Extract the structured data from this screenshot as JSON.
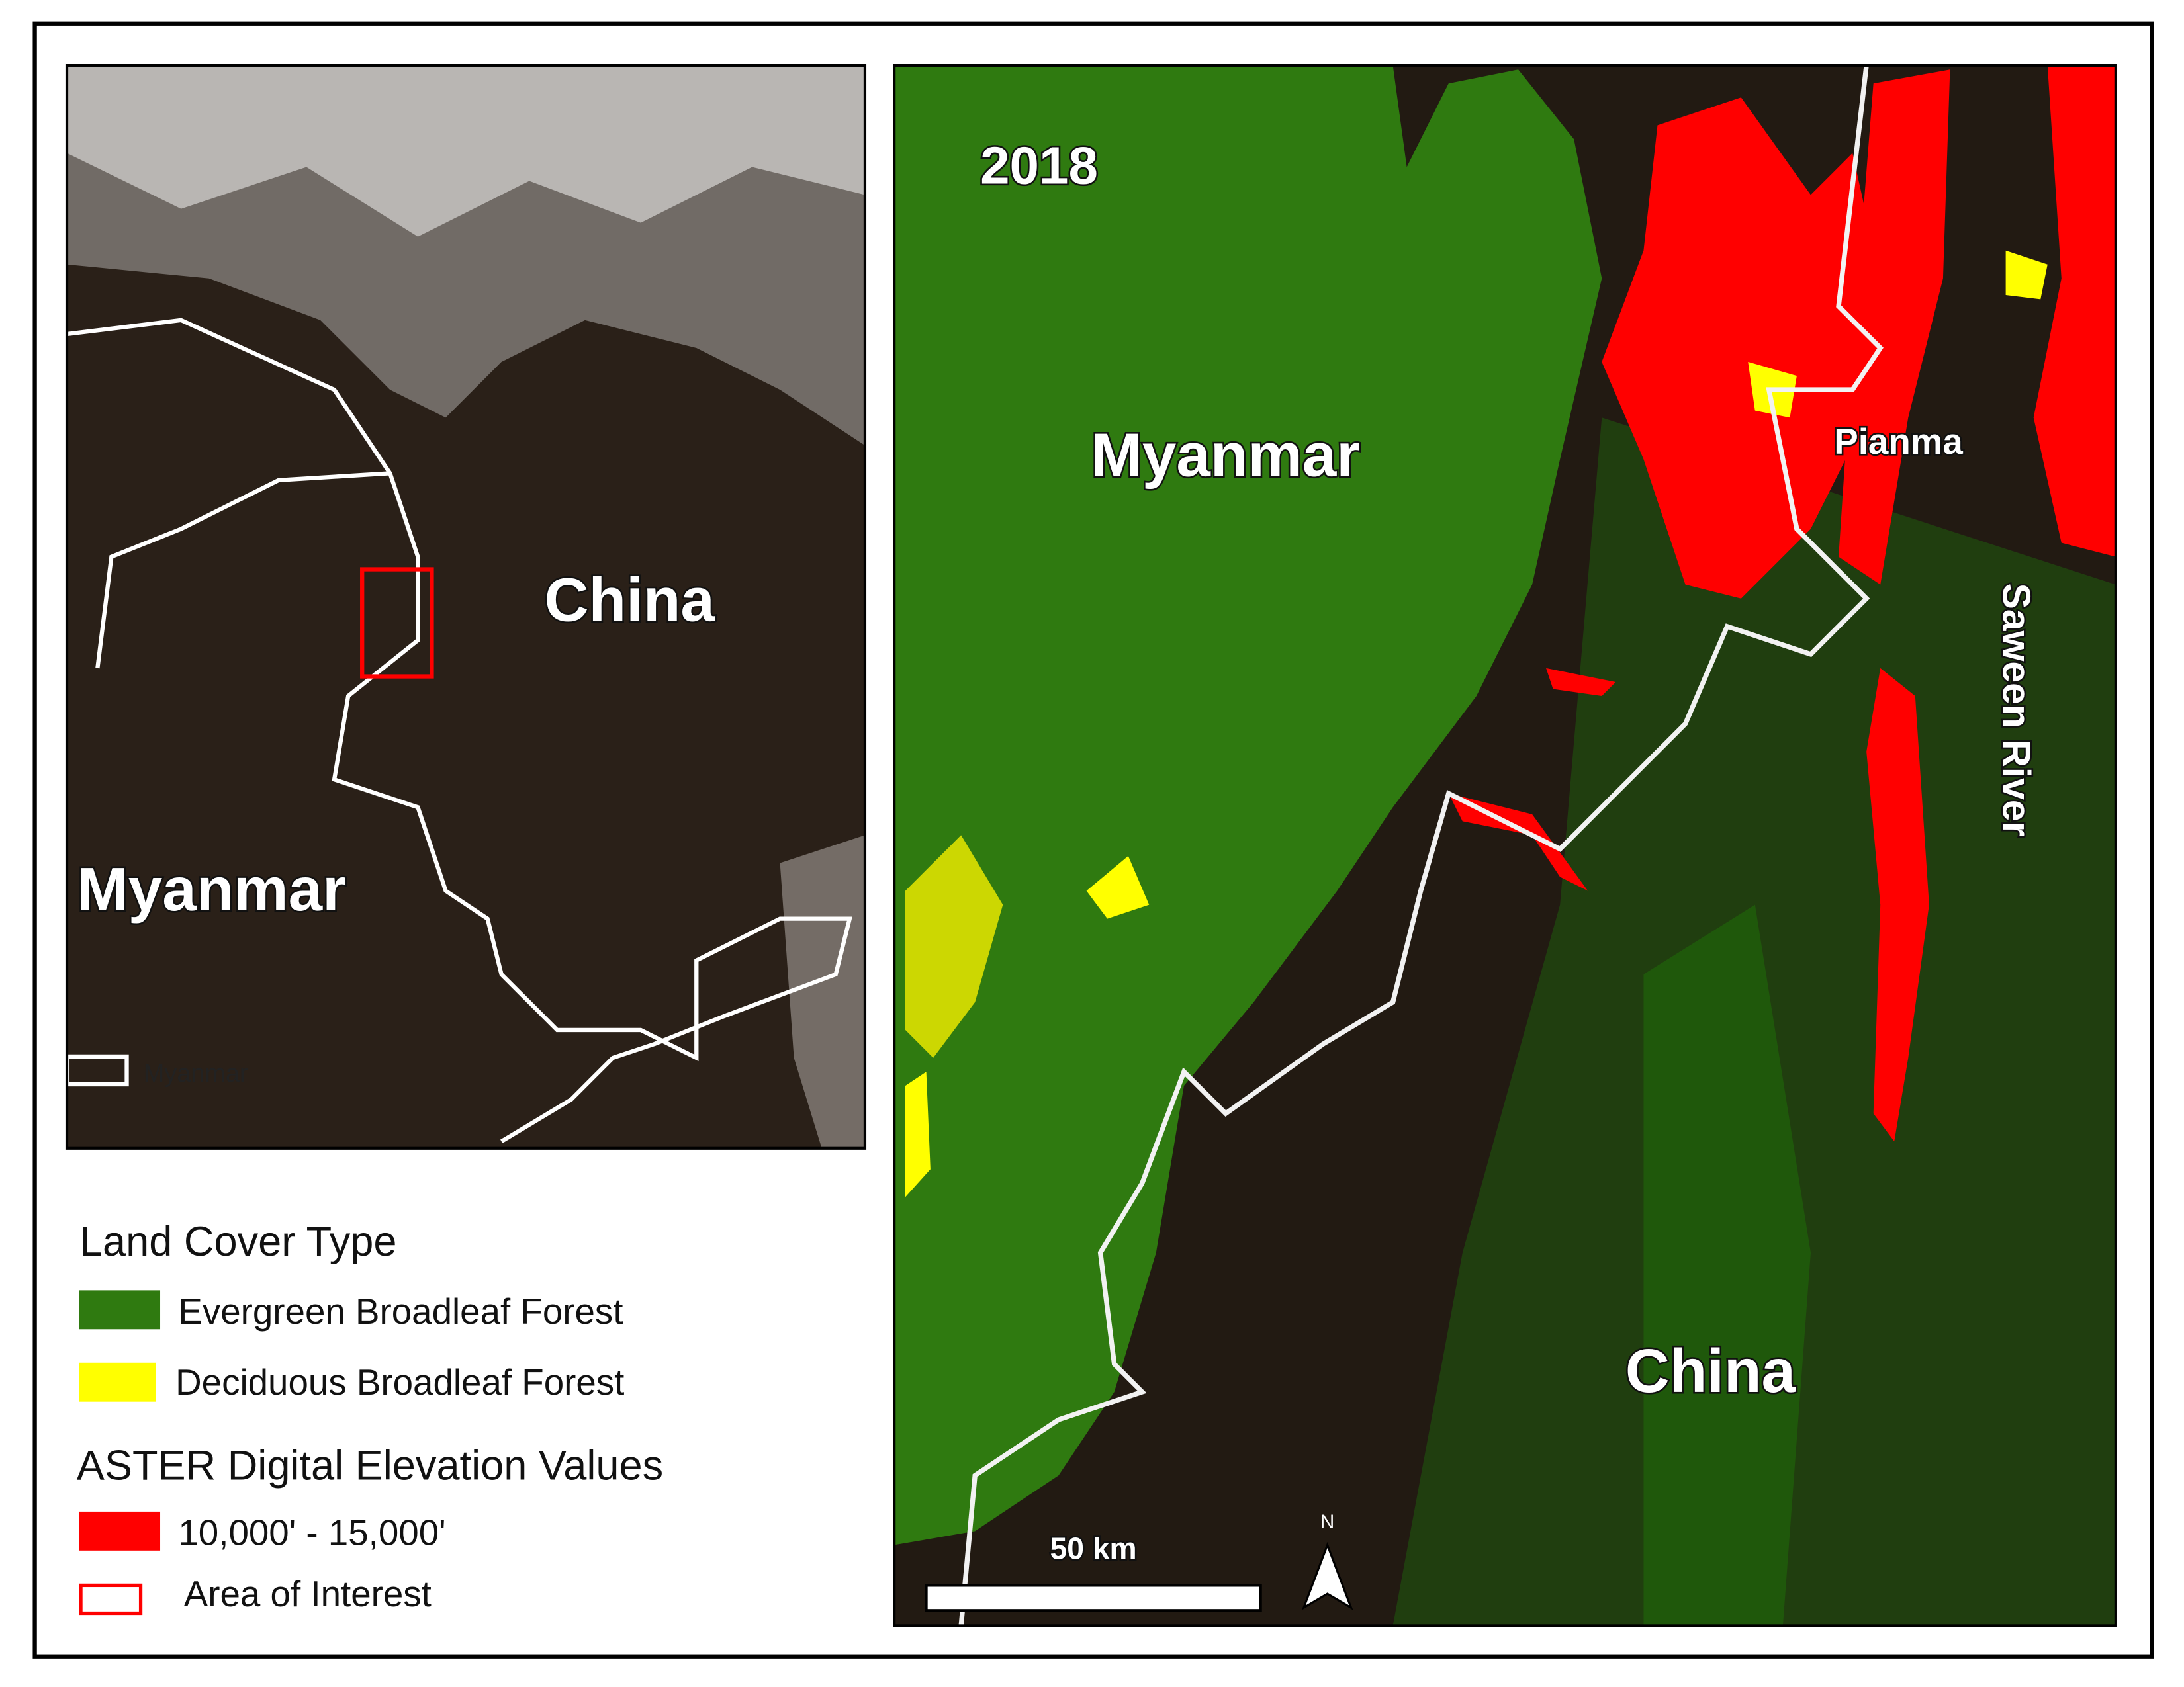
{
  "left_map": {
    "labels": {
      "china": "China",
      "myanmar": "Myanmar"
    },
    "inset_legend": "Myanmar"
  },
  "right_map": {
    "year": "2018",
    "labels": {
      "myanmar": "Myanmar",
      "pianma": "Pianma",
      "river": "Saween River",
      "china": "China"
    },
    "scale_bar": "50 km",
    "north": "N"
  },
  "legend": {
    "land_cover_title": "Land Cover Type",
    "land_cover_items": [
      "Evergreen Broadleaf Forest",
      "Deciduous Broadleaf Forest"
    ],
    "elevation_title": "ASTER Digital Elevation Values",
    "elevation_items": [
      "10,000' - 15,000'",
      "Area of Interest"
    ]
  }
}
